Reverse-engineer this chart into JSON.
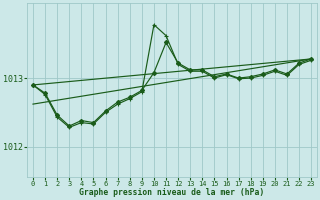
{
  "background_color": "#cce8e8",
  "grid_color": "#9fc8c8",
  "line_color": "#1a5c1a",
  "xlabel": "Graphe pression niveau de la mer (hPa)",
  "xlim": [
    -0.5,
    23.5
  ],
  "ylim": [
    1011.55,
    1014.1
  ],
  "yticks": [
    1012,
    1013
  ],
  "xticks": [
    0,
    1,
    2,
    3,
    4,
    5,
    6,
    7,
    8,
    9,
    10,
    11,
    12,
    13,
    14,
    15,
    16,
    17,
    18,
    19,
    20,
    21,
    22,
    23
  ],
  "line1_y": [
    1012.9,
    1012.78,
    1012.46,
    1012.3,
    1012.38,
    1012.35,
    1012.52,
    1012.65,
    1012.72,
    1012.82,
    1013.08,
    1013.52,
    1013.22,
    1013.12,
    1013.12,
    1013.02,
    1013.06,
    1013.0,
    1013.02,
    1013.06,
    1013.12,
    1013.06,
    1013.22,
    1013.28
  ],
  "line2_y": [
    1012.9,
    1012.76,
    1012.43,
    1012.28,
    1012.35,
    1012.33,
    1012.5,
    1012.62,
    1012.7,
    1012.8,
    1013.78,
    1013.62,
    1013.2,
    1013.1,
    1013.1,
    1013.0,
    1013.05,
    1012.99,
    1013.0,
    1013.04,
    1013.1,
    1013.04,
    1013.2,
    1013.26
  ],
  "trend1_x": [
    0,
    23
  ],
  "trend1_y": [
    1012.9,
    1013.28
  ],
  "trend2_x": [
    0,
    23
  ],
  "trend2_y": [
    1012.62,
    1013.28
  ]
}
